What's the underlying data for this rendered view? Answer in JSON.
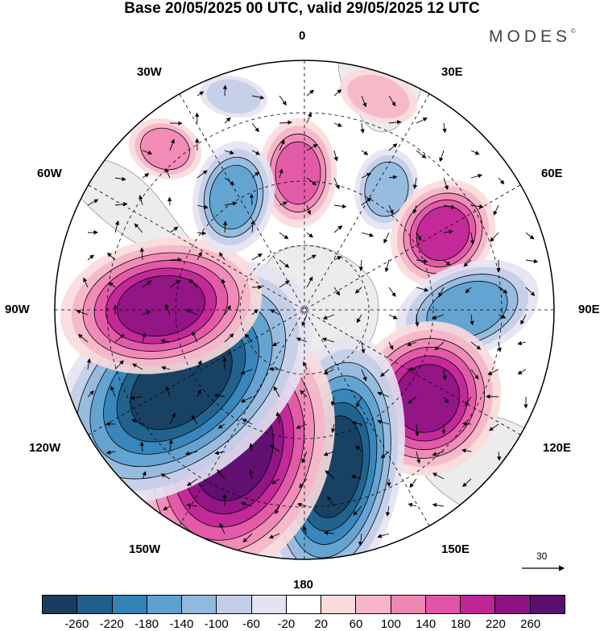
{
  "title": "Base 20/05/2025 00 UTC, valid 29/05/2025 12 UTC",
  "brand": "MODES",
  "brand_mark": "©",
  "longitude_labels": {
    "l0": "0",
    "l30e": "30E",
    "l60e": "60E",
    "l90e": "90E",
    "l120e": "120E",
    "l150e": "150E",
    "l180": "180",
    "l150w": "150W",
    "l120w": "120W",
    "l90w": "90W",
    "l60w": "60W",
    "l30w": "30W"
  },
  "vector_scale": {
    "value": "30"
  },
  "colorbar": {
    "colors": [
      "#173e5f",
      "#1f5f8a",
      "#3383b8",
      "#5ea1cf",
      "#92b9de",
      "#c3cde8",
      "#e5e3f2",
      "#ffffff",
      "#fbdcdc",
      "#f6b5c8",
      "#ef87b5",
      "#e155a6",
      "#bf2496",
      "#8e1384",
      "#5b0f6e"
    ],
    "tick_labels": [
      "-260",
      "-220",
      "-180",
      "-140",
      "-100",
      "-60",
      "-20",
      "20",
      "60",
      "100",
      "140",
      "180",
      "220",
      "260"
    ]
  },
  "map": {
    "projection": "south-polar-stereographic",
    "field": "anomaly",
    "anomalies": [
      {
        "name": "anomaly-positive-0",
        "value": 120
      },
      {
        "name": "anomaly-positive-30e",
        "value": 60
      },
      {
        "name": "anomaly-negative-20e",
        "value": -100
      },
      {
        "name": "anomaly-positive-60e",
        "value": 180
      },
      {
        "name": "anomaly-negative-90e",
        "value": -140
      },
      {
        "name": "anomaly-positive-120e",
        "value": 200
      },
      {
        "name": "anomaly-negative-160e",
        "value": -260
      },
      {
        "name": "anomaly-positive-150w",
        "value": 260
      },
      {
        "name": "anomaly-negative-120w",
        "value": -300
      },
      {
        "name": "anomaly-positive-90w",
        "value": 220
      },
      {
        "name": "anomaly-negative-40w",
        "value": -120
      },
      {
        "name": "anomaly-positive-50w",
        "value": 80
      },
      {
        "name": "anomaly-negative-30w",
        "value": -60
      }
    ]
  }
}
